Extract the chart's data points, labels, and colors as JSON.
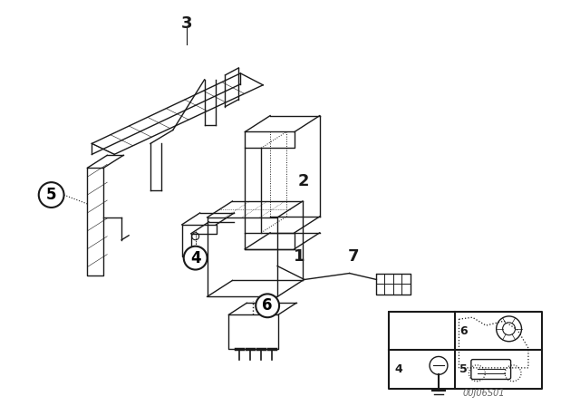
{
  "bg_color": "#ffffff",
  "fig_bg": "#ffffff",
  "lc": "#1a1a1a",
  "lw": 1.0,
  "watermark": "00J06S01"
}
